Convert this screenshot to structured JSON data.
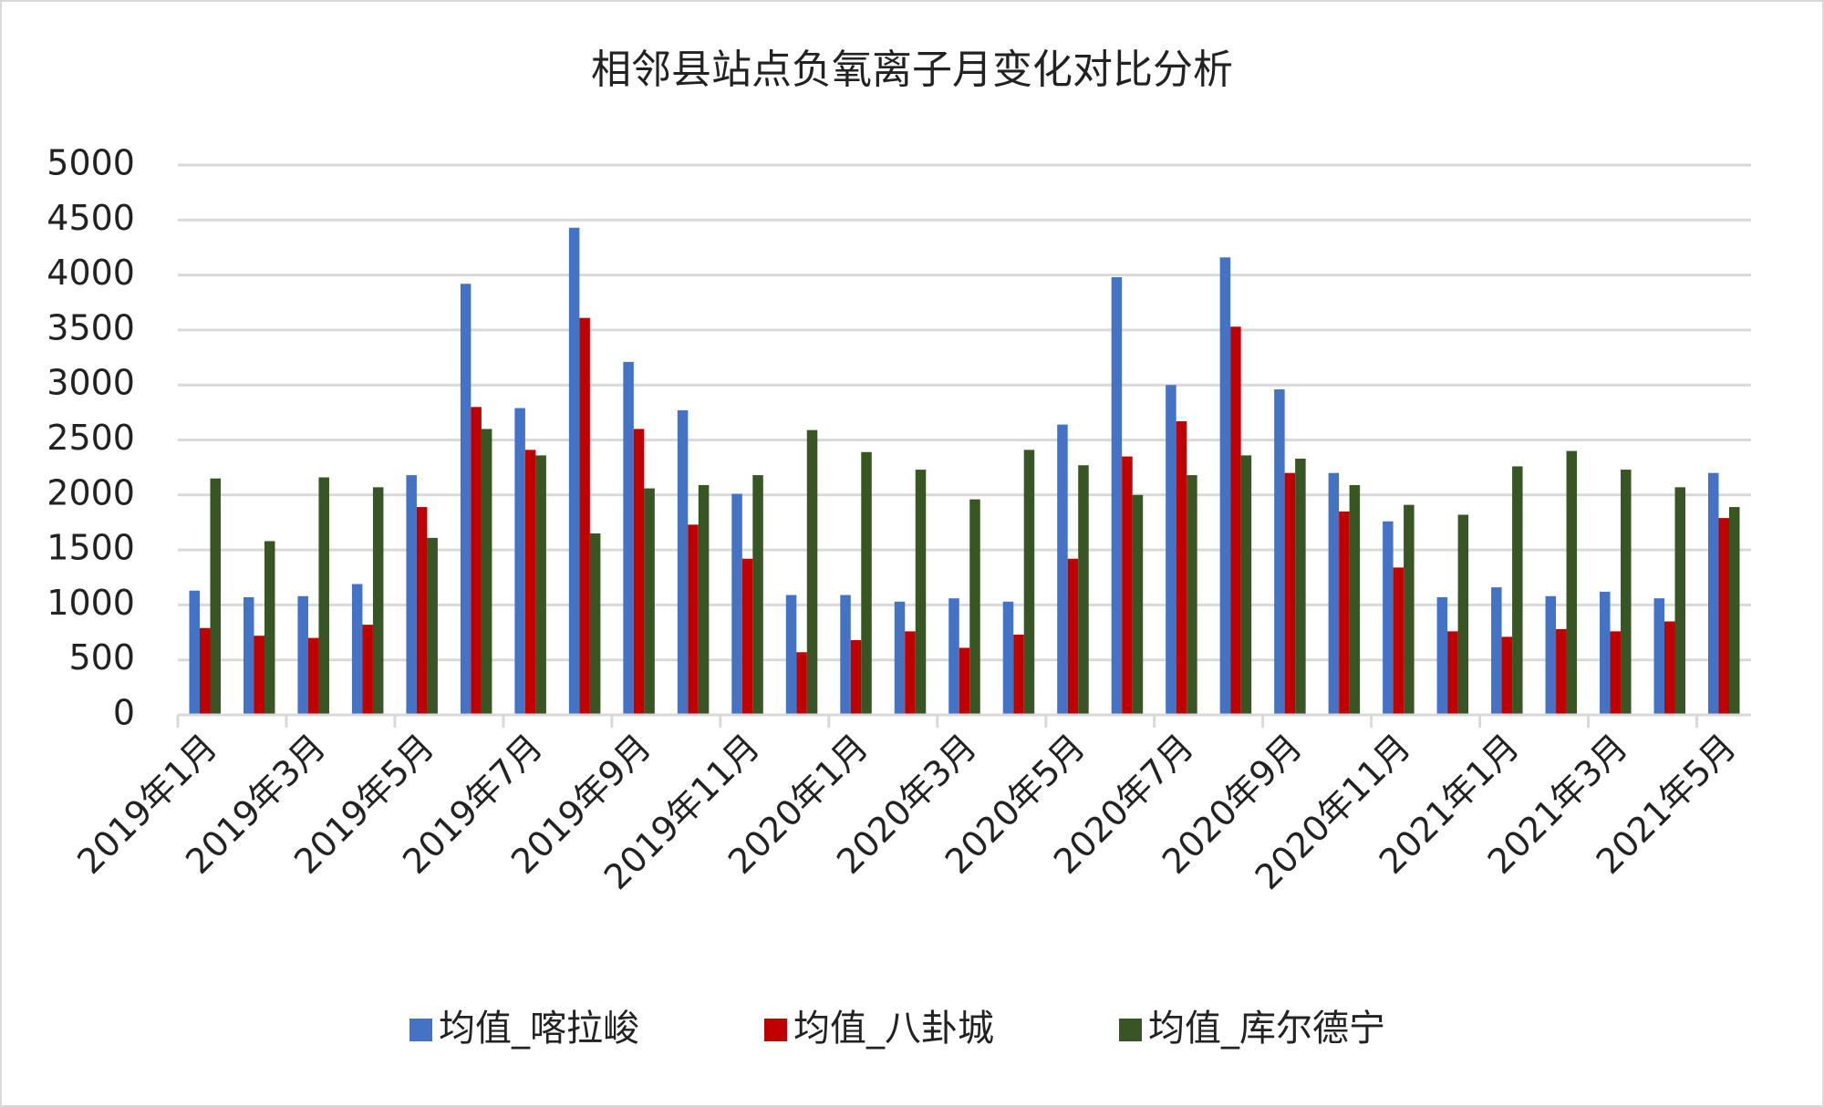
{
  "chart_data": {
    "type": "bar",
    "title": "相邻县站点负氧离子月变化对比分析",
    "categories": [
      "2019年1月",
      null,
      "2019年3月",
      null,
      "2019年5月",
      null,
      "2019年7月",
      null,
      "2019年9月",
      null,
      "2019年11月",
      null,
      "2020年1月",
      null,
      "2020年3月",
      null,
      "2020年5月",
      null,
      "2020年7月",
      null,
      "2020年9月",
      null,
      "2020年11月",
      null,
      "2021年1月",
      null,
      "2021年3月",
      null,
      "2021年5月"
    ],
    "series": [
      {
        "name": "均值_喀拉峻",
        "color": "#4472c4",
        "values": [
          1130,
          1070,
          1080,
          1190,
          2180,
          3920,
          2790,
          4430,
          3210,
          2770,
          2010,
          1090,
          1090,
          1030,
          1060,
          1030,
          2640,
          3980,
          3000,
          4160,
          2960,
          2200,
          1760,
          1070,
          1160,
          1080,
          1120,
          1060,
          2200
        ]
      },
      {
        "name": "均值_八卦城",
        "color": "#c00000",
        "values": [
          790,
          720,
          700,
          820,
          1890,
          2800,
          2410,
          3610,
          2600,
          1730,
          1420,
          570,
          680,
          760,
          610,
          730,
          1420,
          2350,
          2670,
          3530,
          2200,
          1850,
          1340,
          760,
          710,
          780,
          760,
          850,
          1790
        ]
      },
      {
        "name": "均值_库尔德宁",
        "color": "#375623",
        "values": [
          2150,
          1580,
          2160,
          2070,
          1610,
          2600,
          2360,
          1650,
          2060,
          2090,
          2180,
          2590,
          2390,
          2230,
          1960,
          2410,
          2270,
          2000,
          2180,
          2360,
          2330,
          2090,
          1910,
          1820,
          2260,
          2400,
          2230,
          2070,
          1890
        ]
      }
    ],
    "ylim": [
      0,
      5000
    ],
    "yticks": [
      0,
      500,
      1000,
      1500,
      2000,
      2500,
      3000,
      3500,
      4000,
      4500,
      5000
    ],
    "grid": true,
    "legend": "bottom"
  }
}
